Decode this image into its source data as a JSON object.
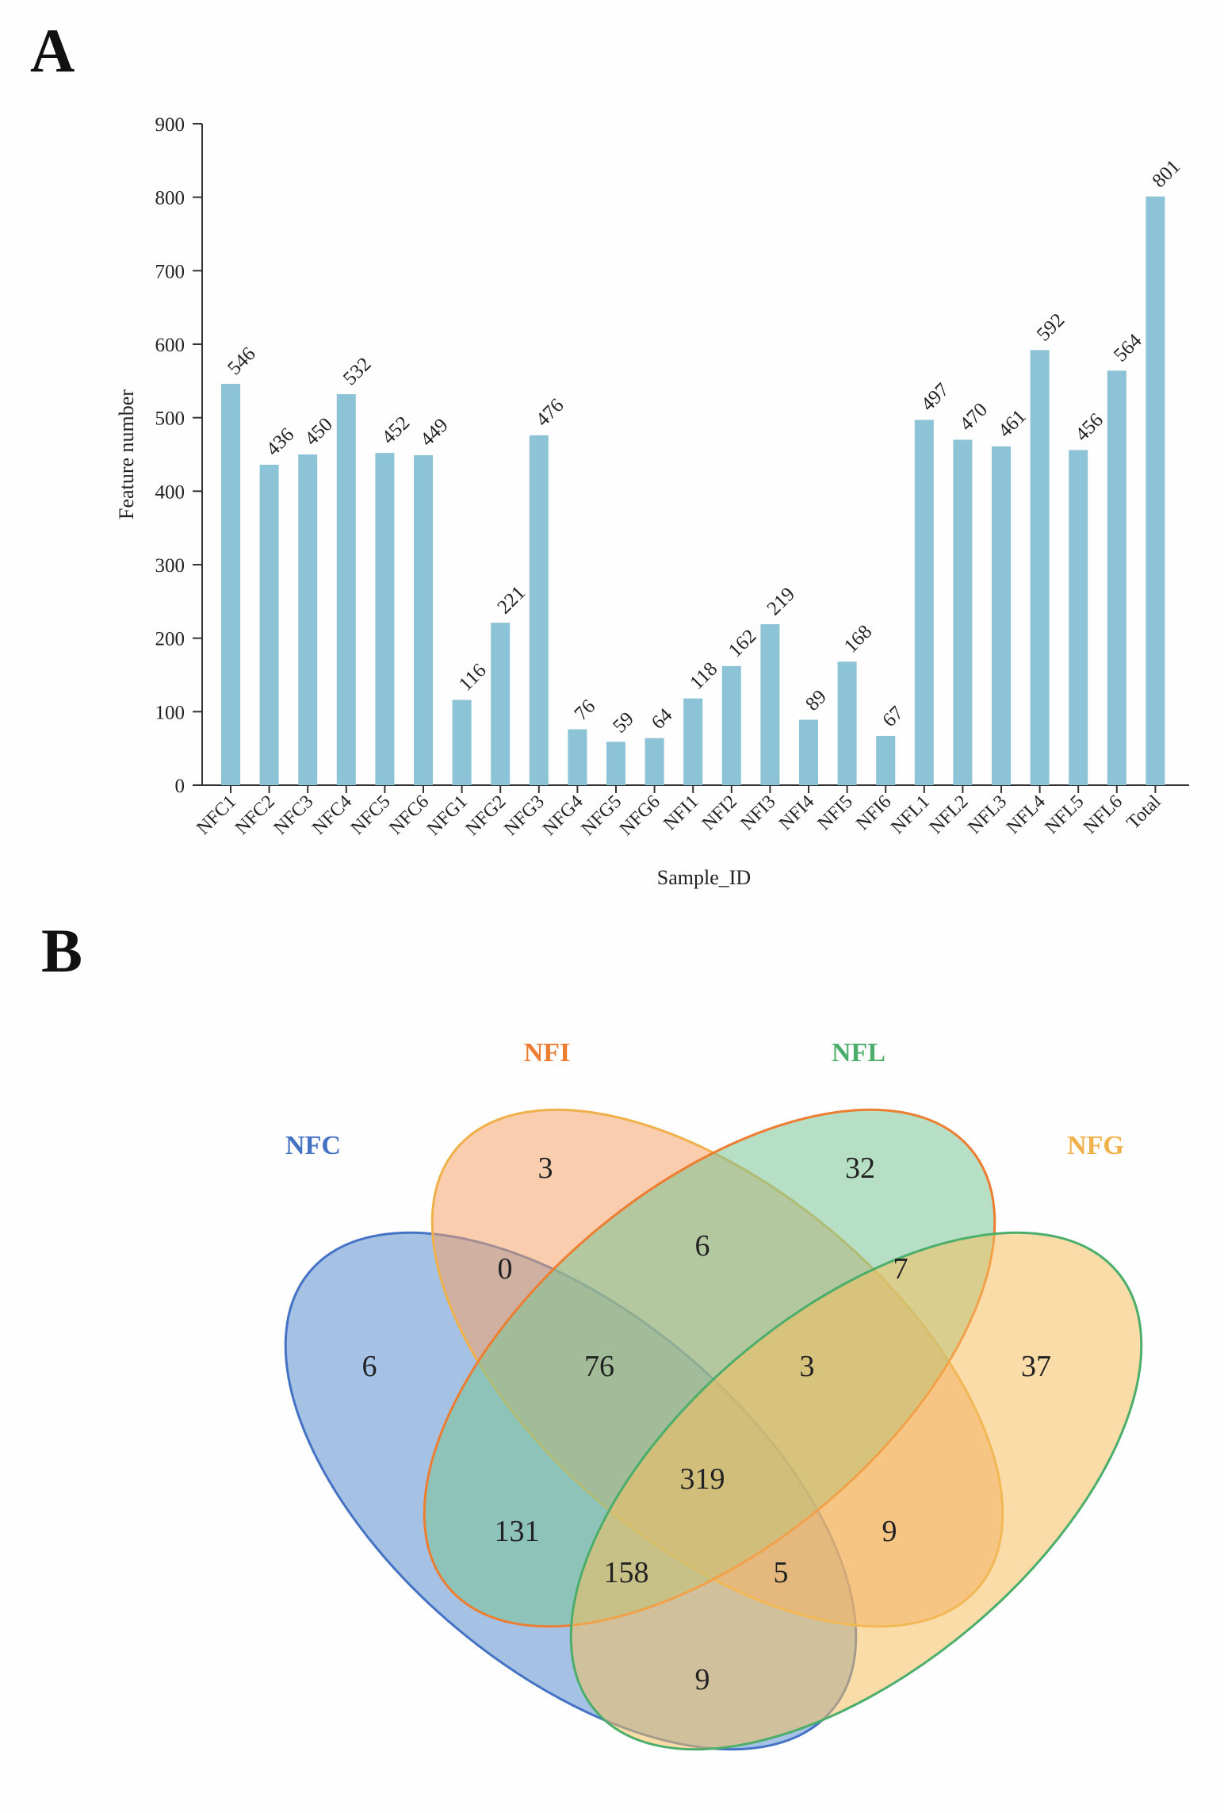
{
  "panel_a": {
    "letter": "A"
  },
  "panel_b": {
    "letter": "B"
  },
  "chart_data": [
    {
      "type": "bar",
      "title": "",
      "xlabel": "Sample_ID",
      "ylabel": "Feature number",
      "ylim": [
        0,
        900
      ],
      "yticks": [
        0,
        100,
        200,
        300,
        400,
        500,
        600,
        700,
        800,
        900
      ],
      "bar_color": "#8cc3d6",
      "categories": [
        "NFC1",
        "NFC2",
        "NFC3",
        "NFC4",
        "NFC5",
        "NFC6",
        "NFG1",
        "NFG2",
        "NFG3",
        "NFG4",
        "NFG5",
        "NFG6",
        "NFI1",
        "NFI2",
        "NFI3",
        "NFI4",
        "NFI5",
        "NFI6",
        "NFL1",
        "NFL2",
        "NFL3",
        "NFL4",
        "NFL5",
        "NFL6",
        "Total"
      ],
      "values": [
        546,
        436,
        450,
        532,
        452,
        449,
        116,
        221,
        476,
        76,
        59,
        64,
        118,
        162,
        219,
        89,
        168,
        67,
        497,
        470,
        461,
        592,
        456,
        564,
        801
      ]
    },
    {
      "type": "venn",
      "sets": [
        {
          "name": "NFC",
          "color": "#4472c4",
          "fill": "#5b8fd0"
        },
        {
          "name": "NFI",
          "color": "#ed7d31",
          "fill": "#f4a46a"
        },
        {
          "name": "NFL",
          "color": "#4cae6b",
          "fill": "#7cc496"
        },
        {
          "name": "NFG",
          "color": "#f0b04a",
          "fill": "#f5c061"
        }
      ],
      "regions": [
        {
          "sets": [
            "NFC"
          ],
          "value": 6
        },
        {
          "sets": [
            "NFI"
          ],
          "value": 3
        },
        {
          "sets": [
            "NFL"
          ],
          "value": 32
        },
        {
          "sets": [
            "NFG"
          ],
          "value": 37
        },
        {
          "sets": [
            "NFC",
            "NFI"
          ],
          "value": 0
        },
        {
          "sets": [
            "NFI",
            "NFL"
          ],
          "value": 6
        },
        {
          "sets": [
            "NFL",
            "NFG"
          ],
          "value": 7
        },
        {
          "sets": [
            "NFC",
            "NFI",
            "NFL"
          ],
          "value": 76
        },
        {
          "sets": [
            "NFI",
            "NFL",
            "NFG"
          ],
          "value": 3
        },
        {
          "sets": [
            "NFC",
            "NFI",
            "NFL",
            "NFG"
          ],
          "value": 319
        },
        {
          "sets": [
            "NFC",
            "NFL"
          ],
          "value": 131
        },
        {
          "sets": [
            "NFI",
            "NFG"
          ],
          "value": 9
        },
        {
          "sets": [
            "NFC",
            "NFL",
            "NFG"
          ],
          "value": 158
        },
        {
          "sets": [
            "NFC",
            "NFI",
            "NFG"
          ],
          "value": 5
        },
        {
          "sets": [
            "NFC",
            "NFG"
          ],
          "value": 9
        }
      ]
    }
  ]
}
